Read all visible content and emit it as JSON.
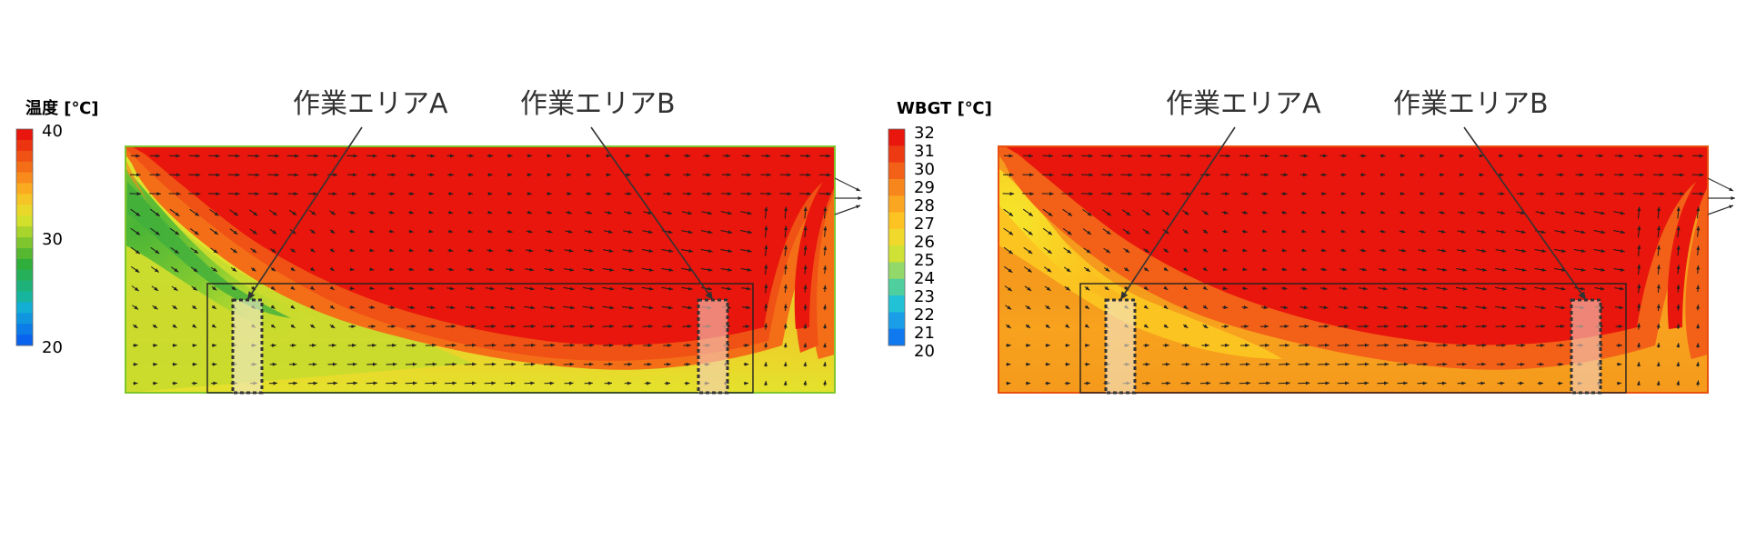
{
  "panels": [
    {
      "id": "temperature",
      "legend": {
        "title": "温度 [℃]",
        "ticks": [
          "40",
          "30",
          "20"
        ],
        "colors": [
          "#e8160c",
          "#ec3410",
          "#f05114",
          "#f46e18",
          "#f88b1c",
          "#fbab20",
          "#f5c426",
          "#e9d82a",
          "#d2e02c",
          "#a9d42c",
          "#7fc62e",
          "#55b830",
          "#2fae3c",
          "#26b05a",
          "#1eb27a",
          "#17b59e",
          "#12aed4",
          "#0f96de",
          "#0b7ce8",
          "#0a63ee"
        ]
      },
      "areas": [
        {
          "label": "作業エリアA"
        },
        {
          "label": "作業エリアB"
        }
      ]
    },
    {
      "id": "wbgt",
      "legend": {
        "title": "WBGT [℃]",
        "ticks": [
          "32",
          "31",
          "30",
          "29",
          "28",
          "27",
          "26",
          "25",
          "24",
          "23",
          "22",
          "21",
          "20"
        ],
        "colors": [
          "#e8160c",
          "#ee3a12",
          "#f36018",
          "#f7861c",
          "#fba620",
          "#fcc322",
          "#f1d92c",
          "#cfe134",
          "#92d96a",
          "#50cf9e",
          "#22c2d6",
          "#1a9ee8",
          "#1079f0"
        ]
      },
      "areas": [
        {
          "label": "作業エリアA"
        },
        {
          "label": "作業エリアB"
        }
      ]
    }
  ]
}
